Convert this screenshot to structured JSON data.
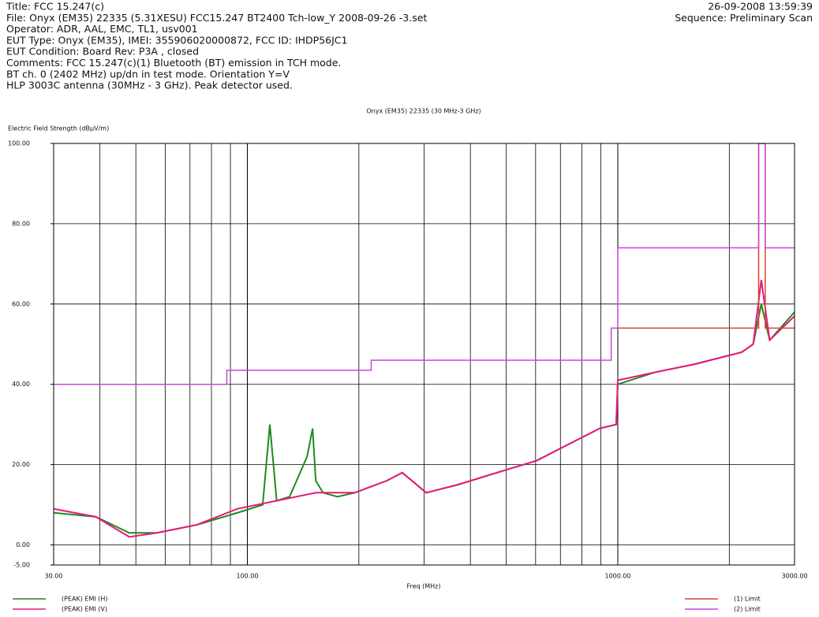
{
  "header": {
    "left": [
      "Title: FCC 15.247(c)",
      "File: Onyx (EM35) 22335 (5.31XESU) FCC15.247 BT2400 Tch-low_Y 2008-09-26 -3.set",
      "Operator: ADR, AAL, EMC, TL1, usv001",
      "EUT Type: Onyx (EM35), IMEI: 355906020000872, FCC ID: IHDP56JC1",
      "EUT Condition: Board Rev: P3A , closed",
      "Comments: FCC 15.247(c)(1) Bluetooth (BT) emission in TCH mode.",
      "BT ch. 0 (2402 MHz) up/dn in test mode. Orientation Y=V",
      "HLP 3003C antenna (30MHz - 3 GHz). Peak detector used."
    ],
    "right": [
      "26-09-2008 13:59:39",
      "Sequence: Preliminary Scan"
    ]
  },
  "chart_data": {
    "type": "line",
    "title": "Onyx (EM35) 22335 (30 MHz-3 GHz)",
    "y_label": "Electric Field Strength (dBµV/m)",
    "x_label": "Freq (MHz)",
    "x_scale": "log",
    "grid": true,
    "xlim": [
      30,
      3000
    ],
    "ylim": [
      -5,
      100
    ],
    "xticks": [
      {
        "value": 30,
        "label": "30.00"
      },
      {
        "value": 100,
        "label": "100.00"
      },
      {
        "value": 1000,
        "label": "1000.00"
      },
      {
        "value": 3000,
        "label": "3000.00"
      }
    ],
    "xgrid_minor": [
      40,
      50,
      60,
      70,
      80,
      90,
      200,
      300,
      400,
      500,
      600,
      700,
      800,
      900,
      2000
    ],
    "yticks": [
      {
        "value": -5,
        "label": "-5.00"
      },
      {
        "value": 0,
        "label": "0.00"
      },
      {
        "value": 20,
        "label": "20.00"
      },
      {
        "value": 40,
        "label": "40.00"
      },
      {
        "value": 60,
        "label": "60.00"
      },
      {
        "value": 80,
        "label": "80.00"
      },
      {
        "value": 100,
        "label": "100.00"
      }
    ],
    "series": [
      {
        "name": "(PEAK) EMI (H)",
        "color": "#1f8a1f",
        "x": [
          30,
          39,
          48,
          57,
          73,
          94,
          110,
          115,
          120,
          130,
          145,
          150,
          153,
          160,
          175,
          195,
          238,
          262,
          304,
          370,
          472,
          604,
          734,
          893,
          990,
          1000,
          1260,
          1610,
          2160,
          2320,
          2440,
          2570,
          3000
        ],
        "values": [
          8,
          7,
          3,
          3,
          5,
          8,
          10,
          30,
          11,
          12,
          22,
          29,
          16,
          13,
          12,
          13,
          16,
          18,
          13,
          15,
          18,
          21,
          25,
          29,
          30,
          40,
          43,
          45,
          48,
          50,
          60,
          51,
          58
        ]
      },
      {
        "name": "(PEAK) EMI (V)",
        "color": "#e8177f",
        "x": [
          30,
          39,
          48,
          57,
          73,
          94,
          120,
          153,
          195,
          238,
          262,
          304,
          370,
          472,
          604,
          734,
          893,
          990,
          1000,
          1260,
          1610,
          2160,
          2320,
          2440,
          2570,
          3000
        ],
        "values": [
          9,
          7,
          2,
          3,
          5,
          9,
          11,
          13,
          13,
          16,
          18,
          13,
          15,
          18,
          21,
          25,
          29,
          30,
          41,
          43,
          45,
          48,
          50,
          66,
          51,
          57
        ]
      },
      {
        "name": "(1) Limit",
        "color": "#d9442f",
        "x": [
          1000,
          2400,
          2400,
          2500,
          2500,
          3000
        ],
        "values": [
          54,
          54,
          100,
          100,
          54,
          54
        ]
      },
      {
        "name": "(2) Limit",
        "color": "#cc44dd",
        "x": [
          30,
          88,
          88,
          216,
          216,
          960,
          960,
          1000,
          1000,
          2400,
          2400,
          2500,
          2500,
          3000
        ],
        "values": [
          40,
          40,
          43.5,
          43.5,
          46,
          46,
          54,
          54,
          74,
          74,
          100,
          100,
          74,
          74
        ]
      }
    ]
  }
}
